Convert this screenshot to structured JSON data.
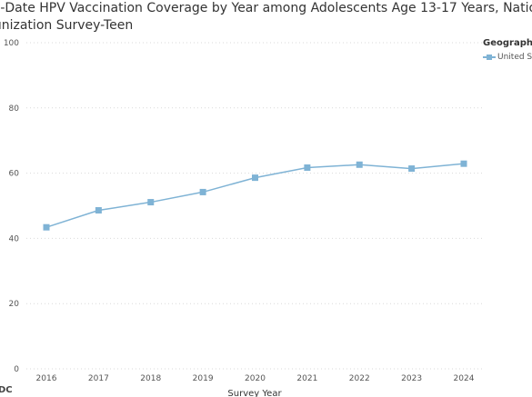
{
  "title": {
    "line1": "to-Date HPV Vaccination Coverage by Year among Adolescents Age 13-17 Years, National",
    "line2": "nunization Survey-Teen"
  },
  "legend": {
    "title": "Geography",
    "item_label": "United S"
  },
  "source": "DC",
  "colors": {
    "series": "#7fb3d5",
    "grid": "#d9d9d9"
  },
  "chart_data": {
    "type": "line",
    "title": "to-Date HPV Vaccination Coverage by Year among Adolescents Age 13-17 Years, National nunization Survey-Teen",
    "xlabel": "Survey Year",
    "ylabel": "",
    "ylim": [
      0,
      100
    ],
    "yticks": [
      "0",
      "20",
      "40",
      "60",
      "80",
      "100"
    ],
    "categories": [
      "2016",
      "2017",
      "2018",
      "2019",
      "2020",
      "2021",
      "2022",
      "2023",
      "2024"
    ],
    "series": [
      {
        "name": "United S",
        "values": [
          43.4,
          48.6,
          51.1,
          54.2,
          58.6,
          61.7,
          62.6,
          61.4,
          62.9
        ]
      }
    ],
    "grid": true,
    "legend_position": "top-right"
  }
}
